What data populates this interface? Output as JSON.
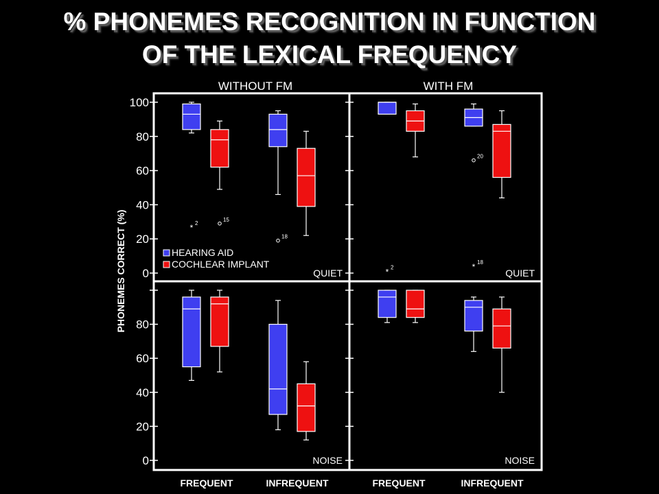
{
  "title": {
    "line1": "% PHONEMES RECOGNITION IN FUNCTION",
    "line2": "OF THE LEXICAL FREQUENCY"
  },
  "colors": {
    "hearing_aid": "#3f3ff0",
    "cochlear_implant": "#ee1111",
    "background": "#000000",
    "foreground": "#ffffff"
  },
  "chart_data": {
    "type": "box",
    "ylabel": "PHONEMES CORRECT (%)",
    "column_labels": [
      "WITHOUT FM",
      "WITH FM"
    ],
    "x_categories": [
      "FREQUENT",
      "INFREQUENT"
    ],
    "legend": [
      {
        "name": "HEARING AID",
        "color": "#3f3ff0"
      },
      {
        "name": "COCHLEAR IMPLANT",
        "color": "#ee1111"
      }
    ],
    "ylim": [
      0,
      100
    ],
    "top_panel_ticks": [
      "100",
      "80",
      "60",
      "40",
      "20",
      "0"
    ],
    "bottom_panel_ticks": [
      "80",
      "60",
      "40",
      "20",
      "0"
    ],
    "panels": [
      {
        "column": "WITHOUT FM",
        "condition": "QUIET",
        "boxes": [
          {
            "group": "FREQUENT",
            "device": "HEARING AID",
            "min": 82,
            "q1": 84,
            "median": 93,
            "q3": 99,
            "max": 100
          },
          {
            "group": "FREQUENT",
            "device": "COCHLEAR IMPLANT",
            "min": 49,
            "q1": 62,
            "median": 78,
            "q3": 84,
            "max": 89
          },
          {
            "group": "INFREQUENT",
            "device": "HEARING AID",
            "min": 46,
            "q1": 74,
            "median": 84,
            "q3": 93,
            "max": 95
          },
          {
            "group": "INFREQUENT",
            "device": "COCHLEAR IMPLANT",
            "min": 22,
            "q1": 39,
            "median": 57,
            "q3": 73,
            "max": 83
          }
        ],
        "outliers": [
          {
            "group": "FREQUENT",
            "device": "HEARING AID",
            "value": 27,
            "marker": "*",
            "label": "2"
          },
          {
            "group": "FREQUENT",
            "device": "COCHLEAR IMPLANT",
            "value": 29,
            "marker": "o",
            "label": "15"
          },
          {
            "group": "INFREQUENT",
            "device": "HEARING AID",
            "value": 19,
            "marker": "o",
            "label": "18"
          }
        ]
      },
      {
        "column": "WITH FM",
        "condition": "QUIET",
        "boxes": [
          {
            "group": "FREQUENT",
            "device": "HEARING AID",
            "min": 93,
            "q1": 93,
            "median": 100,
            "q3": 100,
            "max": 100
          },
          {
            "group": "FREQUENT",
            "device": "COCHLEAR IMPLANT",
            "min": 68,
            "q1": 83,
            "median": 89,
            "q3": 95,
            "max": 99
          },
          {
            "group": "INFREQUENT",
            "device": "HEARING AID",
            "min": 86,
            "q1": 86,
            "median": 91,
            "q3": 96,
            "max": 99
          },
          {
            "group": "INFREQUENT",
            "device": "COCHLEAR IMPLANT",
            "min": 44,
            "q1": 56,
            "median": 83,
            "q3": 87,
            "max": 95
          }
        ],
        "outliers": [
          {
            "group": "FREQUENT",
            "device": "HEARING AID",
            "value": 1,
            "marker": "*",
            "label": "2"
          },
          {
            "group": "INFREQUENT",
            "device": "HEARING AID",
            "value": 4,
            "marker": "*",
            "label": "18"
          },
          {
            "group": "INFREQUENT",
            "device": "HEARING AID",
            "value": 66,
            "marker": "o",
            "label": "20"
          }
        ]
      },
      {
        "column": "WITHOUT FM",
        "condition": "NOISE",
        "boxes": [
          {
            "group": "FREQUENT",
            "device": "HEARING AID",
            "min": 47,
            "q1": 55,
            "median": 89,
            "q3": 96,
            "max": 100
          },
          {
            "group": "FREQUENT",
            "device": "COCHLEAR IMPLANT",
            "min": 52,
            "q1": 67,
            "median": 92,
            "q3": 96,
            "max": 100
          },
          {
            "group": "INFREQUENT",
            "device": "HEARING AID",
            "min": 18,
            "q1": 27,
            "median": 42,
            "q3": 80,
            "max": 94
          },
          {
            "group": "INFREQUENT",
            "device": "COCHLEAR IMPLANT",
            "min": 12,
            "q1": 17,
            "median": 32,
            "q3": 45,
            "max": 58
          }
        ],
        "outliers": []
      },
      {
        "column": "WITH FM",
        "condition": "NOISE",
        "boxes": [
          {
            "group": "FREQUENT",
            "device": "HEARING AID",
            "min": 81,
            "q1": 84,
            "median": 96,
            "q3": 100,
            "max": 100
          },
          {
            "group": "FREQUENT",
            "device": "COCHLEAR IMPLANT",
            "min": 81,
            "q1": 84,
            "median": 89,
            "q3": 100,
            "max": 100
          },
          {
            "group": "INFREQUENT",
            "device": "HEARING AID",
            "min": 64,
            "q1": 76,
            "median": 90,
            "q3": 94,
            "max": 96
          },
          {
            "group": "INFREQUENT",
            "device": "COCHLEAR IMPLANT",
            "min": 40,
            "q1": 66,
            "median": 79,
            "q3": 89,
            "max": 96
          }
        ],
        "outliers": []
      }
    ]
  }
}
